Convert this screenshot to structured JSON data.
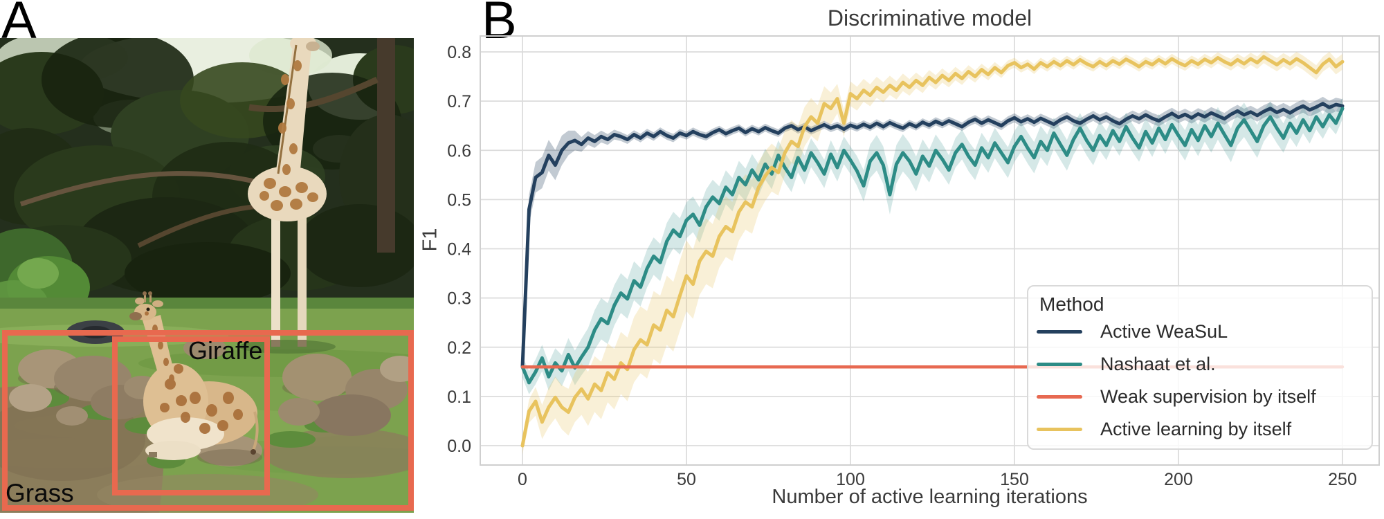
{
  "figure": {
    "panel_a": {
      "label": "A",
      "annotations": {
        "giraffe": "Giraffe",
        "grass": "Grass"
      },
      "box_color": "#e8694f"
    },
    "panel_b": {
      "label": "B"
    }
  },
  "chart_data": {
    "type": "line",
    "title": "Discriminative model",
    "xlabel": "Number of active learning iterations",
    "ylabel": "F1",
    "xlim": [
      -13,
      262
    ],
    "ylim": [
      -0.04,
      0.835
    ],
    "xticks": [
      0,
      50,
      100,
      150,
      200,
      250
    ],
    "xtick_labels": [
      "0",
      "50",
      "100",
      "150",
      "200",
      "250"
    ],
    "yticks": [
      0.0,
      0.1,
      0.2,
      0.3,
      0.4,
      0.5,
      0.6,
      0.7,
      0.8
    ],
    "ytick_labels": [
      "0.0",
      "0.1",
      "0.2",
      "0.3",
      "0.4",
      "0.5",
      "0.6",
      "0.7",
      "0.8"
    ],
    "grid": true,
    "grid_color": "#dcdcdc",
    "spine_color": "#cfcfcf",
    "text_color": "#3a3a3a",
    "legend": {
      "title": "Method",
      "position": "lower right"
    },
    "x_start": 0,
    "x_step": 2,
    "series": [
      {
        "name": "Active WeaSuL",
        "color": "#24405e",
        "band_alpha": 0.28,
        "band": [
          [
            0,
            0.012
          ],
          [
            2,
            0.03
          ],
          [
            6,
            0.032
          ],
          [
            12,
            0.03
          ],
          [
            18,
            0.015
          ],
          [
            30,
            0.009
          ],
          [
            60,
            0.008
          ],
          [
            120,
            0.008
          ],
          [
            170,
            0.01
          ],
          [
            210,
            0.012
          ],
          [
            250,
            0.014
          ]
        ],
        "values": [
          0.16,
          0.48,
          0.545,
          0.555,
          0.59,
          0.57,
          0.6,
          0.615,
          0.62,
          0.612,
          0.625,
          0.618,
          0.628,
          0.622,
          0.632,
          0.628,
          0.622,
          0.632,
          0.625,
          0.635,
          0.628,
          0.638,
          0.63,
          0.625,
          0.635,
          0.63,
          0.638,
          0.632,
          0.628,
          0.636,
          0.642,
          0.634,
          0.64,
          0.645,
          0.636,
          0.644,
          0.638,
          0.646,
          0.64,
          0.635,
          0.645,
          0.65,
          0.642,
          0.648,
          0.64,
          0.646,
          0.652,
          0.645,
          0.65,
          0.643,
          0.651,
          0.646,
          0.653,
          0.647,
          0.655,
          0.648,
          0.656,
          0.65,
          0.645,
          0.654,
          0.648,
          0.657,
          0.651,
          0.659,
          0.653,
          0.66,
          0.654,
          0.648,
          0.657,
          0.663,
          0.655,
          0.662,
          0.656,
          0.65,
          0.66,
          0.666,
          0.658,
          0.664,
          0.657,
          0.665,
          0.659,
          0.653,
          0.662,
          0.668,
          0.66,
          0.655,
          0.663,
          0.67,
          0.662,
          0.668,
          0.66,
          0.654,
          0.663,
          0.67,
          0.664,
          0.672,
          0.665,
          0.66,
          0.668,
          0.675,
          0.667,
          0.673,
          0.666,
          0.674,
          0.668,
          0.676,
          0.67,
          0.664,
          0.673,
          0.68,
          0.672,
          0.678,
          0.671,
          0.679,
          0.685,
          0.677,
          0.683,
          0.676,
          0.684,
          0.69,
          0.682,
          0.688,
          0.695,
          0.687,
          0.693,
          0.69
        ]
      },
      {
        "name": "Nashaat et al.",
        "color": "#2d8c86",
        "band_alpha": 0.2,
        "band": [
          [
            0,
            0.022
          ],
          [
            10,
            0.03
          ],
          [
            24,
            0.042
          ],
          [
            40,
            0.038
          ],
          [
            60,
            0.035
          ],
          [
            80,
            0.03
          ],
          [
            100,
            0.028
          ],
          [
            112,
            0.04
          ],
          [
            130,
            0.03
          ],
          [
            160,
            0.032
          ],
          [
            190,
            0.028
          ],
          [
            220,
            0.035
          ],
          [
            250,
            0.022
          ]
        ],
        "values": [
          0.16,
          0.128,
          0.15,
          0.178,
          0.14,
          0.168,
          0.152,
          0.185,
          0.158,
          0.18,
          0.2,
          0.235,
          0.258,
          0.248,
          0.285,
          0.31,
          0.298,
          0.335,
          0.322,
          0.36,
          0.385,
          0.372,
          0.415,
          0.438,
          0.425,
          0.458,
          0.47,
          0.448,
          0.485,
          0.505,
          0.492,
          0.525,
          0.51,
          0.545,
          0.53,
          0.56,
          0.54,
          0.572,
          0.552,
          0.59,
          0.565,
          0.545,
          0.585,
          0.56,
          0.595,
          0.575,
          0.552,
          0.592,
          0.565,
          0.6,
          0.58,
          0.558,
          0.528,
          0.578,
          0.595,
          0.57,
          0.51,
          0.572,
          0.595,
          0.578,
          0.552,
          0.588,
          0.568,
          0.6,
          0.582,
          0.56,
          0.595,
          0.612,
          0.588,
          0.57,
          0.605,
          0.585,
          0.615,
          0.595,
          0.575,
          0.608,
          0.628,
          0.605,
          0.585,
          0.618,
          0.6,
          0.635,
          0.612,
          0.59,
          0.622,
          0.645,
          0.62,
          0.6,
          0.63,
          0.61,
          0.64,
          0.618,
          0.648,
          0.625,
          0.605,
          0.638,
          0.615,
          0.645,
          0.622,
          0.652,
          0.63,
          0.61,
          0.642,
          0.62,
          0.65,
          0.628,
          0.655,
          0.632,
          0.61,
          0.645,
          0.662,
          0.64,
          0.618,
          0.65,
          0.668,
          0.645,
          0.625,
          0.655,
          0.635,
          0.662,
          0.64,
          0.668,
          0.648,
          0.672,
          0.655,
          0.685
        ]
      },
      {
        "name": "Weak supervision by itself",
        "color": "#e76951",
        "constant": 0.16
      },
      {
        "name": "Active learning by itself",
        "color": "#e8c35e",
        "band_alpha": 0.25,
        "band": [
          [
            0,
            0.018
          ],
          [
            8,
            0.04
          ],
          [
            20,
            0.055
          ],
          [
            36,
            0.068
          ],
          [
            50,
            0.072
          ],
          [
            64,
            0.06
          ],
          [
            80,
            0.045
          ],
          [
            92,
            0.035
          ],
          [
            100,
            0.025
          ],
          [
            120,
            0.016
          ],
          [
            150,
            0.01
          ],
          [
            200,
            0.01
          ],
          [
            235,
            0.014
          ],
          [
            250,
            0.016
          ]
        ],
        "values": [
          0.0,
          0.07,
          0.09,
          0.048,
          0.078,
          0.098,
          0.078,
          0.068,
          0.098,
          0.115,
          0.095,
          0.125,
          0.112,
          0.148,
          0.135,
          0.168,
          0.155,
          0.195,
          0.215,
          0.205,
          0.245,
          0.235,
          0.275,
          0.262,
          0.305,
          0.345,
          0.328,
          0.375,
          0.395,
          0.385,
          0.425,
          0.445,
          0.435,
          0.475,
          0.495,
          0.485,
          0.525,
          0.548,
          0.565,
          0.555,
          0.595,
          0.618,
          0.608,
          0.648,
          0.668,
          0.655,
          0.695,
          0.685,
          0.705,
          0.655,
          0.715,
          0.705,
          0.722,
          0.712,
          0.728,
          0.718,
          0.732,
          0.722,
          0.738,
          0.728,
          0.742,
          0.732,
          0.748,
          0.738,
          0.752,
          0.742,
          0.756,
          0.746,
          0.76,
          0.75,
          0.764,
          0.754,
          0.768,
          0.758,
          0.772,
          0.778,
          0.768,
          0.775,
          0.765,
          0.778,
          0.77,
          0.78,
          0.772,
          0.782,
          0.774,
          0.784,
          0.776,
          0.77,
          0.78,
          0.772,
          0.782,
          0.775,
          0.785,
          0.778,
          0.77,
          0.78,
          0.774,
          0.784,
          0.776,
          0.786,
          0.778,
          0.772,
          0.782,
          0.775,
          0.785,
          0.778,
          0.788,
          0.78,
          0.774,
          0.784,
          0.776,
          0.786,
          0.778,
          0.79,
          0.782,
          0.774,
          0.784,
          0.776,
          0.786,
          0.778,
          0.768,
          0.758,
          0.775,
          0.785,
          0.77,
          0.78
        ]
      }
    ]
  }
}
